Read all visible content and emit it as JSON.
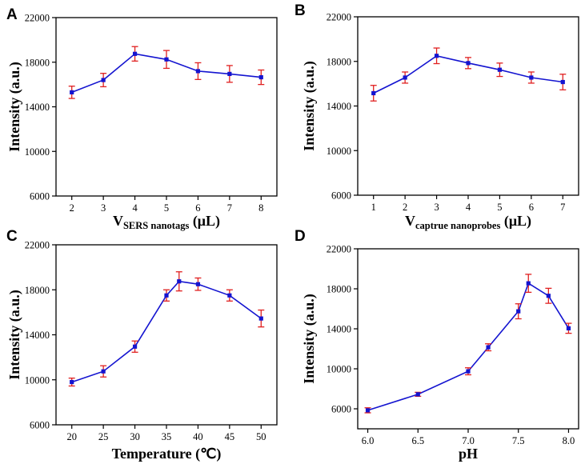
{
  "chart_data": [
    {
      "panel": "A",
      "type": "line",
      "xlabel": "V",
      "xlabel_sub": "SERS nanotags",
      "xlabel_suffix": " (μL)",
      "ylabel": "Intensity (a.u.)",
      "x": [
        2,
        3,
        4,
        5,
        6,
        7,
        8
      ],
      "values": [
        15300,
        16400,
        18750,
        18250,
        17200,
        16950,
        16650
      ],
      "errors": [
        550,
        600,
        650,
        800,
        750,
        750,
        650
      ],
      "xlim": [
        1.5,
        8.5
      ],
      "ylim": [
        6000,
        22000
      ],
      "xticks": [
        2,
        3,
        4,
        5,
        6,
        7,
        8
      ],
      "xtick_labels": [
        "2",
        "3",
        "4",
        "5",
        "6",
        "7",
        "8"
      ],
      "yticks": [
        6000,
        10000,
        14000,
        18000,
        22000
      ],
      "ytick_labels": [
        "6000",
        "10000",
        "14000",
        "18000",
        "22000"
      ],
      "line_color": "#1414d0",
      "marker_color": "#1414d0",
      "error_color": "#e02020"
    },
    {
      "panel": "B",
      "type": "line",
      "xlabel": "V",
      "xlabel_sub": "captrue nanoprobes",
      "xlabel_suffix": " (μL)",
      "ylabel": "Intensity (a.u.)",
      "x": [
        1,
        2,
        3,
        4,
        5,
        6,
        7
      ],
      "values": [
        15150,
        16550,
        18500,
        17850,
        17250,
        16550,
        16150
      ],
      "errors": [
        700,
        500,
        700,
        500,
        600,
        500,
        700
      ],
      "xlim": [
        0.5,
        7.5
      ],
      "ylim": [
        6000,
        22000
      ],
      "xticks": [
        1,
        2,
        3,
        4,
        5,
        6,
        7
      ],
      "xtick_labels": [
        "1",
        "2",
        "3",
        "4",
        "5",
        "6",
        "7"
      ],
      "yticks": [
        6000,
        10000,
        14000,
        18000,
        22000
      ],
      "ytick_labels": [
        "6000",
        "10000",
        "14000",
        "18000",
        "22000"
      ],
      "line_color": "#1414d0",
      "marker_color": "#1414d0",
      "error_color": "#e02020"
    },
    {
      "panel": "C",
      "type": "line",
      "xlabel": "Temperature (℃)",
      "xlabel_sub": "",
      "xlabel_suffix": "",
      "ylabel": "Intensity (a.u.)",
      "x": [
        20,
        25,
        30,
        35,
        37,
        40,
        45,
        50
      ],
      "values": [
        9800,
        10750,
        12950,
        17500,
        18750,
        18500,
        17500,
        15450
      ],
      "errors": [
        350,
        500,
        500,
        500,
        850,
        550,
        500,
        750
      ],
      "xlim": [
        17.5,
        52.5
      ],
      "ylim": [
        6000,
        22000
      ],
      "xticks": [
        20,
        25,
        30,
        35,
        40,
        45,
        50
      ],
      "xtick_labels": [
        "20",
        "25",
        "30",
        "35",
        "40",
        "45",
        "50"
      ],
      "yticks": [
        6000,
        10000,
        14000,
        18000,
        22000
      ],
      "ytick_labels": [
        "6000",
        "10000",
        "14000",
        "18000",
        "22000"
      ],
      "line_color": "#1414d0",
      "marker_color": "#1414d0",
      "error_color": "#e02020"
    },
    {
      "panel": "D",
      "type": "line",
      "xlabel": "pH",
      "xlabel_sub": "",
      "xlabel_suffix": "",
      "ylabel": "Intensity (a.u.)",
      "x": [
        6.0,
        6.5,
        7.0,
        7.2,
        7.5,
        7.6,
        7.8,
        8.0
      ],
      "values": [
        5850,
        7450,
        9750,
        12150,
        15750,
        18550,
        17300,
        14050
      ],
      "errors": [
        250,
        200,
        350,
        350,
        750,
        900,
        750,
        500
      ],
      "xlim": [
        5.9,
        8.1
      ],
      "ylim": [
        4000,
        22000
      ],
      "xticks": [
        6.0,
        6.5,
        7.0,
        7.5,
        8.0
      ],
      "xtick_labels": [
        "6.0",
        "6.5",
        "7.0",
        "7.5",
        "8.0"
      ],
      "yticks": [
        6000,
        10000,
        14000,
        18000,
        22000
      ],
      "ytick_labels": [
        "6000",
        "10000",
        "14000",
        "18000",
        "22000"
      ],
      "line_color": "#1414d0",
      "marker_color": "#1414d0",
      "error_color": "#e02020"
    }
  ]
}
